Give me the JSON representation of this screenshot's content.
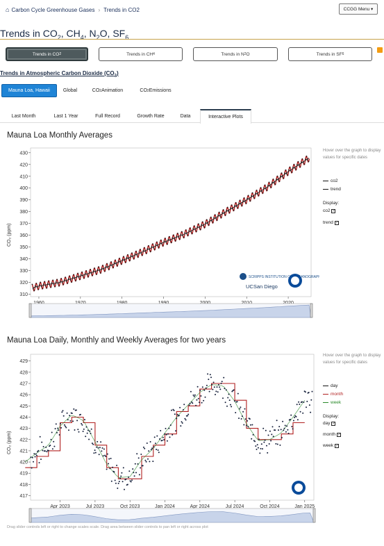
{
  "breadcrumb": {
    "home": "Carbon Cycle Greenhouse Gases",
    "separator": "›",
    "current": "Trends in CO2"
  },
  "menu_button": "CCGG Menu ▾",
  "page_title": {
    "prefix": "Trends in CO",
    "co2_sub": "2",
    "ch4": ", CH",
    "ch4_sub": "4",
    "n2o": ", N",
    "n2o_n": "2",
    "n2o_o": "O, SF",
    "sf6_sub": "6"
  },
  "gas_tabs": [
    {
      "label": "Trends in CO",
      "sub": "2",
      "active": true
    },
    {
      "label": "Trends in CH",
      "sub": "4",
      "active": false
    },
    {
      "label": "Trends in N",
      "sub": "2",
      "tail": "O",
      "active": false
    },
    {
      "label": "Trends in SF",
      "sub": "6",
      "active": false
    }
  ],
  "section_heading": {
    "text": "Trends in Atmospheric Carbon Dioxide (CO",
    "sub": "2",
    "close": ")"
  },
  "sub_tabs": [
    {
      "label": "Mauna Loa, Hawaii",
      "active": true
    },
    {
      "label": "Global",
      "active": false
    },
    {
      "label": "CO",
      "sub": "2",
      "tail": " Animation",
      "active": false
    },
    {
      "label": "CO",
      "sub": "2",
      "tail": " Emissions",
      "active": false
    }
  ],
  "nav_tabs": [
    {
      "label": "Last Month",
      "active": false
    },
    {
      "label": "Last 1 Year",
      "active": false
    },
    {
      "label": "Full Record",
      "active": false
    },
    {
      "label": "Growth Rate",
      "active": false
    },
    {
      "label": "Data",
      "active": false
    },
    {
      "label": "Interactive Plots",
      "active": true
    }
  ],
  "chart1_side": {
    "hover_note": "Hover over the graph to display values for specific dates",
    "legend": [
      "co2",
      "trend"
    ],
    "display_label": "Display:",
    "display_options": [
      {
        "label": "co2",
        "checked": true
      },
      {
        "label": "trend",
        "checked": true
      }
    ]
  },
  "chart2_side": {
    "hover_note": "Hover over the graph to display values for specific dates",
    "legend": [
      {
        "label": "day",
        "color": "#111111"
      },
      {
        "label": "month",
        "color": "#b02020"
      },
      {
        "label": "week",
        "color": "#2a8a2a"
      }
    ],
    "display_label": "Display:",
    "display_options": [
      {
        "label": "day",
        "checked": true
      },
      {
        "label": "month",
        "checked": true
      },
      {
        "label": "week",
        "checked": true
      }
    ]
  },
  "logos": {
    "scripps_text": "SCRIPPS INSTITUTION OF OCEANOGRAPHY",
    "ucsd_text": "UCSan Diego",
    "noaa": "NOAA"
  },
  "footer_note": "Drag slider controls left or right to change scales scale. Drag area between slider controls to pan left or right across plot",
  "chart_data": [
    {
      "type": "line",
      "title": "Mauna Loa Monthly Averages",
      "ylabel": "CO₂ (ppm)",
      "xlim": [
        1958,
        2025.5
      ],
      "ylim": [
        308,
        434
      ],
      "yticks": [
        310,
        320,
        330,
        340,
        350,
        360,
        370,
        380,
        390,
        400,
        410,
        420,
        430
      ],
      "xticks": [
        1960,
        1970,
        1980,
        1990,
        2000,
        2010,
        2020
      ],
      "series": [
        {
          "name": "co2",
          "color": "#b01818",
          "x": [
            1958.5,
            1960,
            1965,
            1970,
            1975,
            1980,
            1985,
            1990,
            1995,
            2000,
            2005,
            2010,
            2015,
            2020,
            2025
          ],
          "y": [
            315.5,
            317,
            320,
            325.5,
            331,
            338.5,
            346,
            354,
            361,
            369.5,
            380,
            390,
            401,
            414,
            425.5
          ]
        },
        {
          "name": "trend",
          "color": "#111111",
          "x": [
            1958.5,
            1960,
            1965,
            1970,
            1975,
            1980,
            1985,
            1990,
            1995,
            2000,
            2005,
            2010,
            2015,
            2020,
            2025
          ],
          "y": [
            315.5,
            317,
            320,
            325.5,
            331,
            338.5,
            346,
            354,
            361,
            369.5,
            380,
            390,
            401,
            414,
            425.5
          ]
        }
      ],
      "seasonal_amplitude_ppm": 3
    },
    {
      "type": "scatter",
      "title": "Mauna Loa Daily, Monthly and Weekly Averages for two years",
      "ylabel": "CO₂ (ppm)",
      "xlim": [
        "2023-01-15",
        "2025-01-25"
      ],
      "ylim": [
        416.6,
        429.6
      ],
      "yticks": [
        417,
        418,
        419,
        420,
        421,
        422,
        423,
        424,
        425,
        426,
        427,
        428,
        429
      ],
      "xticks": [
        "Apr 2023",
        "Jul 2023",
        "Oct 2023",
        "Jan 2024",
        "Apr 2024",
        "Jul 2024",
        "Oct 2024",
        "Jan 2025"
      ],
      "series": [
        {
          "name": "month",
          "color": "#b02020",
          "x": [
            "2023-01",
            "2023-02",
            "2023-03",
            "2023-04",
            "2023-05",
            "2023-06",
            "2023-07",
            "2023-08",
            "2023-09",
            "2023-10",
            "2023-11",
            "2023-12",
            "2024-01",
            "2024-02",
            "2024-03",
            "2024-04",
            "2024-05",
            "2024-06",
            "2024-07",
            "2024-08",
            "2024-09",
            "2024-10",
            "2024-11",
            "2024-12"
          ],
          "y": [
            419.5,
            420.5,
            421,
            423.5,
            424,
            423.5,
            421.5,
            419.5,
            418.5,
            418.5,
            420.5,
            421.5,
            422.5,
            424.5,
            425,
            426.5,
            427,
            427,
            425.5,
            423,
            422,
            422,
            422.5,
            423.5
          ]
        },
        {
          "name": "week",
          "color": "#2a8a2a",
          "x": [
            "2023-01",
            "2023-02",
            "2023-03",
            "2023-04",
            "2023-05",
            "2023-06",
            "2023-07",
            "2023-08",
            "2023-09",
            "2023-10",
            "2023-11",
            "2023-12",
            "2024-01",
            "2024-02",
            "2024-03",
            "2024-04",
            "2024-05",
            "2024-06",
            "2024-07",
            "2024-08",
            "2024-09",
            "2024-10",
            "2024-11",
            "2024-12",
            "2025-01"
          ],
          "y": [
            420,
            420.8,
            421.5,
            423.2,
            424.2,
            423.7,
            421.8,
            419.8,
            418.6,
            418.7,
            420.2,
            421.2,
            422.6,
            424,
            425.1,
            426.2,
            426.9,
            426.8,
            425.4,
            423.4,
            421.9,
            422,
            422.6,
            424,
            425.5
          ]
        },
        {
          "name": "day",
          "color": "#111111",
          "x": [
            "2023-01",
            "2023-02",
            "2023-03",
            "2023-04",
            "2023-05",
            "2023-06",
            "2023-07",
            "2023-08",
            "2023-09",
            "2023-10",
            "2023-11",
            "2023-12",
            "2024-01",
            "2024-02",
            "2024-03",
            "2024-04",
            "2024-05",
            "2024-06",
            "2024-07",
            "2024-08",
            "2024-09",
            "2024-10",
            "2024-11",
            "2024-12",
            "2025-01"
          ],
          "y": [
            420,
            420.8,
            421.5,
            423.2,
            424.2,
            423.7,
            421.8,
            419.8,
            418.6,
            418.7,
            420.2,
            421.2,
            422.6,
            424,
            425.1,
            426.2,
            426.9,
            426.8,
            425.4,
            423.4,
            421.9,
            422,
            422.6,
            424,
            425.5
          ]
        }
      ]
    }
  ]
}
